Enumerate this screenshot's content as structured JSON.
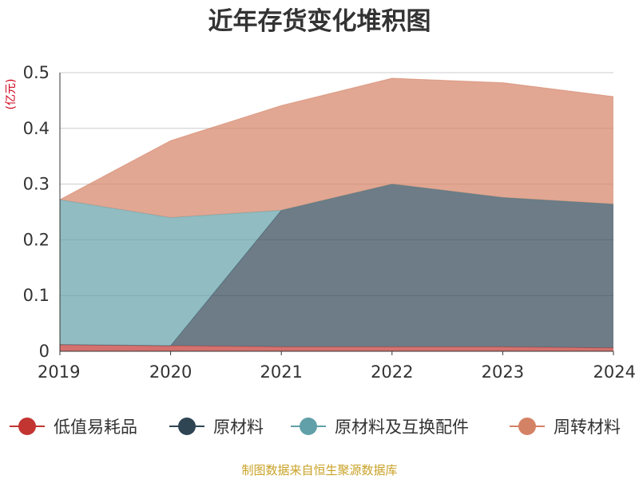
{
  "chart_data": {
    "type": "area",
    "title": "近年存货变化堆积图",
    "unit_label": "(亿元)",
    "x": [
      "2019",
      "2020",
      "2021",
      "2022",
      "2023",
      "2024"
    ],
    "y_ticks": [
      "0",
      "0.1",
      "0.2",
      "0.3",
      "0.4",
      "0.5"
    ],
    "ylim": [
      0,
      0.5
    ],
    "grid": true,
    "legend_position": "bottom",
    "stacked": true,
    "series": [
      {
        "name": "低值易耗品",
        "color": "#c23531",
        "values": [
          0.012,
          0.01,
          0.008,
          0.008,
          0.008,
          0.006
        ]
      },
      {
        "name": "原材料",
        "color": "#2f4554",
        "values": [
          0.0,
          0.0,
          0.245,
          0.292,
          0.268,
          0.258
        ]
      },
      {
        "name": "原材料及互换配件",
        "color": "#61a0a8",
        "values": [
          0.26,
          0.23,
          0.0,
          0.0,
          0.0,
          0.0
        ]
      },
      {
        "name": "周转材料",
        "color": "#d48265",
        "values": [
          0.0,
          0.138,
          0.188,
          0.19,
          0.206,
          0.193
        ]
      }
    ]
  },
  "source_note": "制图数据来自恒生聚源数据库"
}
